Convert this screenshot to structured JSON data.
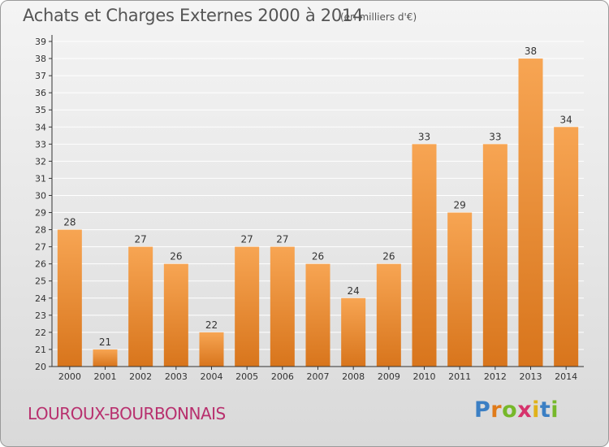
{
  "title": "Achats et Charges Externes 2000 à 2014",
  "subtitle": "(en milliers d'€)",
  "commune": "LOUROUX-BOURBONNAIS",
  "logo": {
    "text": "Proxiti",
    "letters": [
      {
        "char": "P",
        "color": "#3b7fc4"
      },
      {
        "char": "r",
        "color": "#e07b1a"
      },
      {
        "char": "o",
        "color": "#76b82a"
      },
      {
        "char": "x",
        "color": "#d6336c"
      },
      {
        "char": "i",
        "color": "#e0b21a"
      },
      {
        "char": "t",
        "color": "#3b7fc4"
      },
      {
        "char": "i",
        "color": "#76b82a"
      }
    ]
  },
  "colors": {
    "bar_top": "#f7a553",
    "bar_bottom": "#d8751c",
    "axis": "#333333",
    "grid": "#ffffff"
  },
  "chart_data": {
    "type": "bar",
    "categories": [
      "2000",
      "2001",
      "2002",
      "2003",
      "2004",
      "2005",
      "2006",
      "2007",
      "2008",
      "2009",
      "2010",
      "2011",
      "2012",
      "2013",
      "2014"
    ],
    "values": [
      28,
      21,
      27,
      26,
      22,
      27,
      27,
      26,
      24,
      26,
      33,
      29,
      33,
      38,
      34
    ],
    "ylim": [
      20,
      39
    ],
    "yticks": [
      20,
      21,
      22,
      23,
      24,
      25,
      26,
      27,
      28,
      29,
      30,
      31,
      32,
      33,
      34,
      35,
      36,
      37,
      38,
      39
    ],
    "grid": true,
    "data_labels": true
  }
}
